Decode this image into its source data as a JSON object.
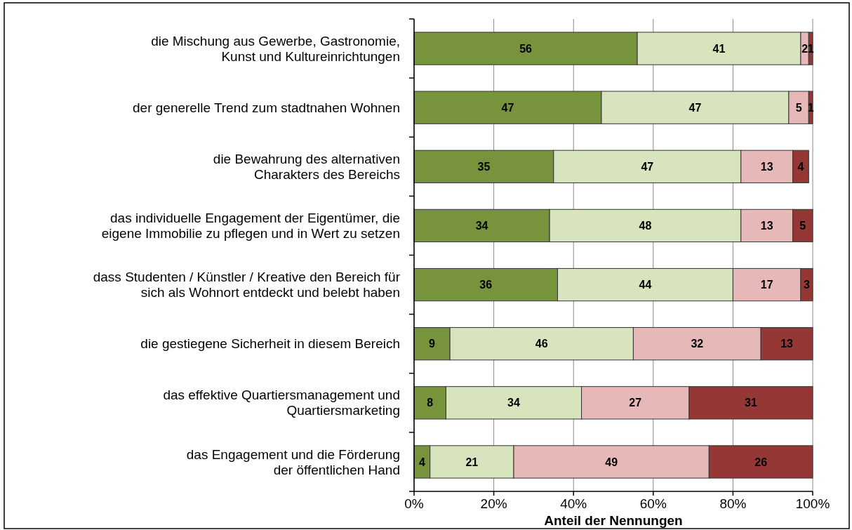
{
  "chart_data": {
    "type": "bar",
    "orientation": "horizontal",
    "stacked": true,
    "xlabel": "Anteil der Nennungen",
    "categories": [
      "die Mischung aus Gewerbe, Gastronomie,\nKunst und Kultureinrichtungen",
      "der generelle Trend zum stadtnahen Wohnen",
      "die Bewahrung des alternativen\nCharakters des Bereichs",
      "das individuelle Engagement der Eigentümer, die\neigene Immobilie zu pflegen und in Wert zu setzen",
      "dass Studenten / Künstler / Kreative den Bereich für\nsich als Wohnort entdeckt und belebt haben",
      "die gestiegene Sicherheit in diesem Bereich",
      "das effektive Quartiersmanagement und\nQuartiersmarketing",
      "das Engagement und die Förderung\nder öffentlichen Hand"
    ],
    "series": [
      {
        "color": "#77933c",
        "values": [
          56,
          47,
          35,
          34,
          36,
          9,
          8,
          4
        ]
      },
      {
        "color": "#d7e4bd",
        "values": [
          41,
          47,
          47,
          48,
          44,
          46,
          34,
          21
        ]
      },
      {
        "color": "#e6b9b8",
        "values": [
          2,
          5,
          13,
          13,
          17,
          32,
          27,
          49
        ]
      },
      {
        "color": "#953735",
        "values": [
          1,
          1,
          4,
          5,
          3,
          13,
          31,
          26
        ]
      }
    ],
    "xlim": [
      0,
      100
    ],
    "xticks": [
      {
        "value": 0,
        "label": "0%"
      },
      {
        "value": 20,
        "label": "20%"
      },
      {
        "value": 40,
        "label": "40%"
      },
      {
        "value": 60,
        "label": "60%"
      },
      {
        "value": 80,
        "label": "80%"
      },
      {
        "value": 100,
        "label": "100%"
      }
    ],
    "grid": "x",
    "data_labels": true
  }
}
